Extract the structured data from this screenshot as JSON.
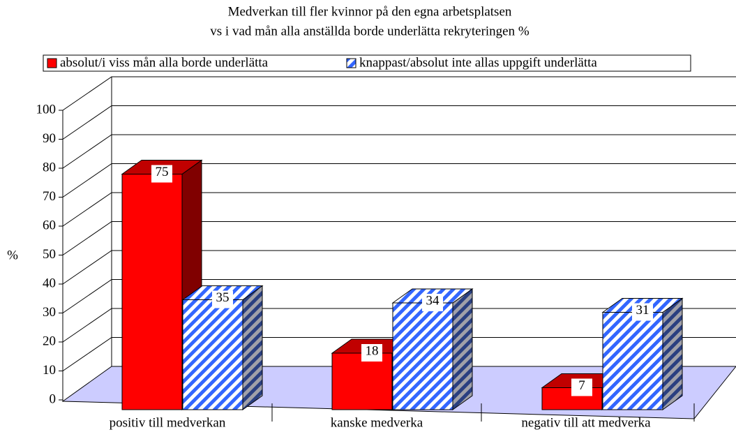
{
  "chart_data": {
    "type": "bar3d",
    "title": [
      "Medverkan till fler kvinnor på den egna arbetsplatsen",
      "vs i vad mån alla anställda borde underlätta rekryteringen %"
    ],
    "ylabel": "%",
    "categories": [
      "positiv till medverkan",
      "kanske medverka",
      "negativ till att medverka"
    ],
    "series": [
      {
        "name": "absolut/i viss mån alla borde underlätta",
        "color": "#ff0000",
        "values": [
          75,
          18,
          7
        ]
      },
      {
        "name": "knappast/absolut inte allas uppgift underlätta",
        "color": "#3366ff",
        "values": [
          35,
          34,
          31
        ]
      }
    ],
    "ylim": [
      0,
      100
    ],
    "yticks": [
      0,
      10,
      20,
      30,
      40,
      50,
      60,
      70,
      80,
      90,
      100
    ],
    "grid": true,
    "legend": "top"
  }
}
